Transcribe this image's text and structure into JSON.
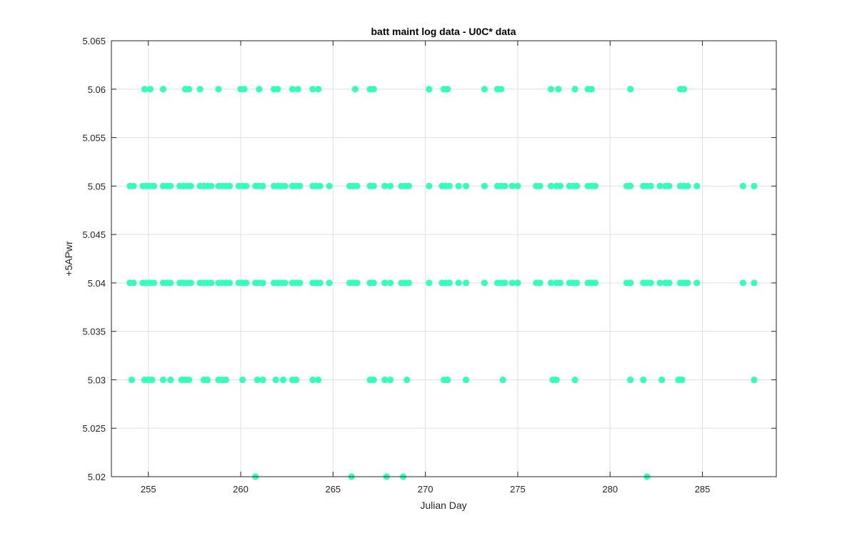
{
  "chart_data": {
    "type": "scatter",
    "title": "batt maint log data - U0C* data",
    "xlabel": "Julian Day",
    "ylabel": "+5APwr",
    "xlim": [
      253,
      289
    ],
    "ylim": [
      5.02,
      5.065
    ],
    "xticks": [
      255,
      260,
      265,
      270,
      275,
      280,
      285
    ],
    "yticks": [
      5.02,
      5.025,
      5.03,
      5.035,
      5.04,
      5.045,
      5.05,
      5.055,
      5.06,
      5.065
    ],
    "xtick_labels": [
      "255",
      "260",
      "265",
      "270",
      "275",
      "280",
      "285"
    ],
    "ytick_labels": [
      "5.02",
      "5.025",
      "5.03",
      "5.035",
      "5.04",
      "5.045",
      "5.05",
      "5.055",
      "5.06",
      "5.065"
    ],
    "grid": true,
    "marker_color": "#33ffbb",
    "series": [
      {
        "points": [
          [
            254.8,
            5.06
          ],
          [
            255.1,
            5.06
          ],
          [
            255.8,
            5.06
          ],
          [
            257.0,
            5.06
          ],
          [
            257.2,
            5.06
          ],
          [
            257.8,
            5.06
          ],
          [
            258.8,
            5.06
          ],
          [
            260.0,
            5.06
          ],
          [
            260.2,
            5.06
          ],
          [
            261.0,
            5.06
          ],
          [
            261.8,
            5.06
          ],
          [
            262.0,
            5.06
          ],
          [
            262.8,
            5.06
          ],
          [
            263.1,
            5.06
          ],
          [
            263.9,
            5.06
          ],
          [
            264.2,
            5.06
          ],
          [
            266.2,
            5.06
          ],
          [
            267.0,
            5.06
          ],
          [
            267.2,
            5.06
          ],
          [
            270.2,
            5.06
          ],
          [
            271.0,
            5.06
          ],
          [
            271.2,
            5.06
          ],
          [
            273.2,
            5.06
          ],
          [
            273.9,
            5.06
          ],
          [
            274.1,
            5.06
          ],
          [
            276.8,
            5.06
          ],
          [
            277.2,
            5.06
          ],
          [
            278.1,
            5.06
          ],
          [
            278.8,
            5.06
          ],
          [
            279.0,
            5.06
          ],
          [
            281.1,
            5.06
          ],
          [
            283.8,
            5.06
          ],
          [
            284.0,
            5.06
          ],
          [
            254.0,
            5.05
          ],
          [
            254.2,
            5.05
          ],
          [
            254.7,
            5.05
          ],
          [
            254.9,
            5.05
          ],
          [
            255.1,
            5.05
          ],
          [
            255.3,
            5.05
          ],
          [
            255.8,
            5.05
          ],
          [
            256.0,
            5.05
          ],
          [
            256.2,
            5.05
          ],
          [
            256.7,
            5.05
          ],
          [
            256.9,
            5.05
          ],
          [
            257.1,
            5.05
          ],
          [
            257.3,
            5.05
          ],
          [
            257.8,
            5.05
          ],
          [
            258.0,
            5.05
          ],
          [
            258.2,
            5.05
          ],
          [
            258.4,
            5.05
          ],
          [
            258.8,
            5.05
          ],
          [
            259.0,
            5.05
          ],
          [
            259.2,
            5.05
          ],
          [
            259.4,
            5.05
          ],
          [
            259.9,
            5.05
          ],
          [
            260.1,
            5.05
          ],
          [
            260.3,
            5.05
          ],
          [
            260.8,
            5.05
          ],
          [
            261.0,
            5.05
          ],
          [
            261.2,
            5.05
          ],
          [
            261.8,
            5.05
          ],
          [
            262.0,
            5.05
          ],
          [
            262.2,
            5.05
          ],
          [
            262.4,
            5.05
          ],
          [
            262.8,
            5.05
          ],
          [
            263.0,
            5.05
          ],
          [
            263.2,
            5.05
          ],
          [
            263.9,
            5.05
          ],
          [
            264.1,
            5.05
          ],
          [
            264.3,
            5.05
          ],
          [
            264.8,
            5.05
          ],
          [
            265.9,
            5.05
          ],
          [
            266.1,
            5.05
          ],
          [
            266.3,
            5.05
          ],
          [
            267.0,
            5.05
          ],
          [
            267.2,
            5.05
          ],
          [
            267.8,
            5.05
          ],
          [
            268.1,
            5.05
          ],
          [
            268.7,
            5.05
          ],
          [
            268.9,
            5.05
          ],
          [
            269.1,
            5.05
          ],
          [
            270.2,
            5.05
          ],
          [
            270.9,
            5.05
          ],
          [
            271.1,
            5.05
          ],
          [
            271.3,
            5.05
          ],
          [
            271.8,
            5.05
          ],
          [
            272.2,
            5.05
          ],
          [
            273.2,
            5.05
          ],
          [
            273.9,
            5.05
          ],
          [
            274.1,
            5.05
          ],
          [
            274.3,
            5.05
          ],
          [
            274.7,
            5.05
          ],
          [
            275.0,
            5.05
          ],
          [
            276.0,
            5.05
          ],
          [
            276.2,
            5.05
          ],
          [
            276.8,
            5.05
          ],
          [
            277.1,
            5.05
          ],
          [
            277.3,
            5.05
          ],
          [
            277.8,
            5.05
          ],
          [
            278.0,
            5.05
          ],
          [
            278.2,
            5.05
          ],
          [
            278.8,
            5.05
          ],
          [
            279.0,
            5.05
          ],
          [
            279.2,
            5.05
          ],
          [
            280.9,
            5.05
          ],
          [
            281.1,
            5.05
          ],
          [
            281.8,
            5.05
          ],
          [
            282.0,
            5.05
          ],
          [
            282.2,
            5.05
          ],
          [
            282.7,
            5.05
          ],
          [
            283.0,
            5.05
          ],
          [
            283.2,
            5.05
          ],
          [
            283.8,
            5.05
          ],
          [
            284.0,
            5.05
          ],
          [
            284.2,
            5.05
          ],
          [
            284.7,
            5.05
          ],
          [
            287.2,
            5.05
          ],
          [
            287.8,
            5.05
          ],
          [
            254.0,
            5.04
          ],
          [
            254.2,
            5.04
          ],
          [
            254.7,
            5.04
          ],
          [
            254.9,
            5.04
          ],
          [
            255.1,
            5.04
          ],
          [
            255.3,
            5.04
          ],
          [
            255.8,
            5.04
          ],
          [
            256.0,
            5.04
          ],
          [
            256.2,
            5.04
          ],
          [
            256.7,
            5.04
          ],
          [
            256.9,
            5.04
          ],
          [
            257.1,
            5.04
          ],
          [
            257.3,
            5.04
          ],
          [
            257.8,
            5.04
          ],
          [
            258.0,
            5.04
          ],
          [
            258.2,
            5.04
          ],
          [
            258.4,
            5.04
          ],
          [
            258.8,
            5.04
          ],
          [
            259.0,
            5.04
          ],
          [
            259.2,
            5.04
          ],
          [
            259.4,
            5.04
          ],
          [
            259.9,
            5.04
          ],
          [
            260.1,
            5.04
          ],
          [
            260.3,
            5.04
          ],
          [
            260.8,
            5.04
          ],
          [
            261.0,
            5.04
          ],
          [
            261.2,
            5.04
          ],
          [
            261.8,
            5.04
          ],
          [
            262.0,
            5.04
          ],
          [
            262.2,
            5.04
          ],
          [
            262.4,
            5.04
          ],
          [
            262.8,
            5.04
          ],
          [
            263.0,
            5.04
          ],
          [
            263.2,
            5.04
          ],
          [
            263.9,
            5.04
          ],
          [
            264.1,
            5.04
          ],
          [
            264.3,
            5.04
          ],
          [
            264.8,
            5.04
          ],
          [
            265.9,
            5.04
          ],
          [
            266.1,
            5.04
          ],
          [
            266.3,
            5.04
          ],
          [
            267.0,
            5.04
          ],
          [
            267.2,
            5.04
          ],
          [
            267.8,
            5.04
          ],
          [
            268.1,
            5.04
          ],
          [
            268.7,
            5.04
          ],
          [
            268.9,
            5.04
          ],
          [
            269.1,
            5.04
          ],
          [
            270.2,
            5.04
          ],
          [
            270.9,
            5.04
          ],
          [
            271.1,
            5.04
          ],
          [
            271.3,
            5.04
          ],
          [
            271.8,
            5.04
          ],
          [
            272.2,
            5.04
          ],
          [
            273.2,
            5.04
          ],
          [
            273.9,
            5.04
          ],
          [
            274.1,
            5.04
          ],
          [
            274.3,
            5.04
          ],
          [
            274.7,
            5.04
          ],
          [
            275.0,
            5.04
          ],
          [
            276.0,
            5.04
          ],
          [
            276.2,
            5.04
          ],
          [
            276.8,
            5.04
          ],
          [
            277.1,
            5.04
          ],
          [
            277.3,
            5.04
          ],
          [
            277.8,
            5.04
          ],
          [
            278.0,
            5.04
          ],
          [
            278.2,
            5.04
          ],
          [
            278.8,
            5.04
          ],
          [
            279.0,
            5.04
          ],
          [
            279.2,
            5.04
          ],
          [
            280.9,
            5.04
          ],
          [
            281.1,
            5.04
          ],
          [
            281.8,
            5.04
          ],
          [
            282.0,
            5.04
          ],
          [
            282.2,
            5.04
          ],
          [
            282.7,
            5.04
          ],
          [
            283.0,
            5.04
          ],
          [
            283.2,
            5.04
          ],
          [
            283.8,
            5.04
          ],
          [
            284.0,
            5.04
          ],
          [
            284.2,
            5.04
          ],
          [
            284.7,
            5.04
          ],
          [
            287.2,
            5.04
          ],
          [
            287.8,
            5.04
          ],
          [
            254.1,
            5.03
          ],
          [
            254.8,
            5.03
          ],
          [
            255.0,
            5.03
          ],
          [
            255.2,
            5.03
          ],
          [
            255.8,
            5.03
          ],
          [
            256.2,
            5.03
          ],
          [
            256.8,
            5.03
          ],
          [
            257.0,
            5.03
          ],
          [
            257.2,
            5.03
          ],
          [
            258.0,
            5.03
          ],
          [
            258.2,
            5.03
          ],
          [
            258.8,
            5.03
          ],
          [
            259.0,
            5.03
          ],
          [
            259.2,
            5.03
          ],
          [
            260.1,
            5.03
          ],
          [
            260.9,
            5.03
          ],
          [
            261.2,
            5.03
          ],
          [
            261.9,
            5.03
          ],
          [
            262.3,
            5.03
          ],
          [
            262.8,
            5.03
          ],
          [
            263.0,
            5.03
          ],
          [
            263.9,
            5.03
          ],
          [
            264.2,
            5.03
          ],
          [
            267.0,
            5.03
          ],
          [
            267.2,
            5.03
          ],
          [
            267.8,
            5.03
          ],
          [
            268.1,
            5.03
          ],
          [
            269.0,
            5.03
          ],
          [
            271.0,
            5.03
          ],
          [
            271.2,
            5.03
          ],
          [
            272.2,
            5.03
          ],
          [
            274.2,
            5.03
          ],
          [
            276.9,
            5.03
          ],
          [
            277.1,
            5.03
          ],
          [
            278.1,
            5.03
          ],
          [
            281.1,
            5.03
          ],
          [
            281.8,
            5.03
          ],
          [
            282.8,
            5.03
          ],
          [
            283.7,
            5.03
          ],
          [
            283.9,
            5.03
          ],
          [
            287.8,
            5.03
          ],
          [
            260.8,
            5.02
          ],
          [
            266.0,
            5.02
          ],
          [
            267.9,
            5.02
          ],
          [
            268.8,
            5.02
          ],
          [
            282.0,
            5.02
          ]
        ]
      }
    ]
  }
}
